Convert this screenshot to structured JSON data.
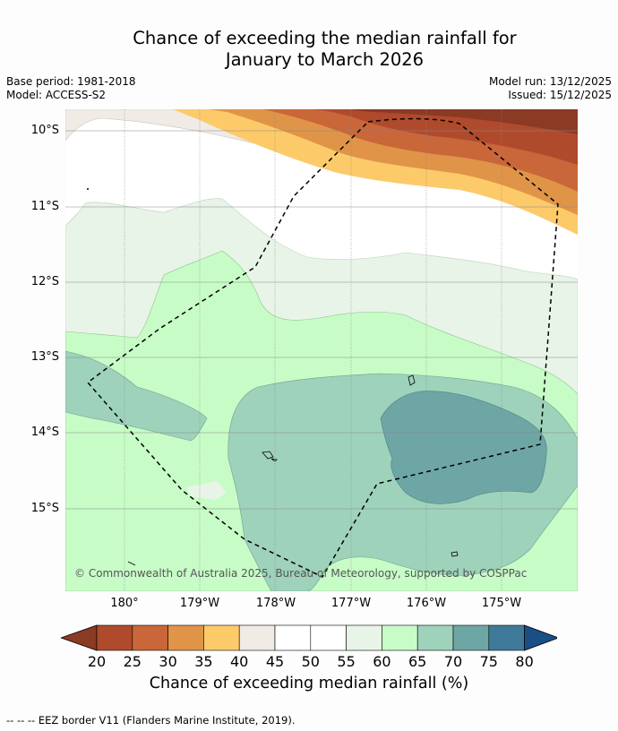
{
  "title": {
    "line1": "Chance of exceeding the median rainfall for",
    "line2": "January to March 2026"
  },
  "meta": {
    "base_period": "Base period: 1981-2018",
    "model": "Model: ACCESS-S2",
    "model_run": "Model run: 13/12/2025",
    "issued": "Issued: 15/12/2025"
  },
  "map": {
    "latitude_labels": [
      "10°S",
      "11°S",
      "12°S",
      "13°S",
      "14°S",
      "15°S"
    ],
    "longitude_labels": [
      "180°",
      "179°W",
      "178°W",
      "177°W",
      "176°W",
      "175°W"
    ],
    "copyright": "© Commonwealth of Australia 2025, Bureau of Meteorology, supported by COSPPac",
    "eez_boundary": "dashed black"
  },
  "colorbar": {
    "ticks": [
      "20",
      "25",
      "30",
      "35",
      "40",
      "45",
      "50",
      "55",
      "60",
      "65",
      "70",
      "75",
      "80"
    ],
    "colors": [
      "#8b3a24",
      "#b04a2c",
      "#c9663a",
      "#e09448",
      "#fdca6a",
      "#f0ebe5",
      "#ffffff",
      "#ffffff",
      "#e8f4e8",
      "#c7fcc7",
      "#9ed2bb",
      "#6ea6a6",
      "#3f7a9a",
      "#1a4f85"
    ],
    "label": "Chance of exceeding median rainfall (%)"
  },
  "footnote": "--  --  -- EEZ border V11 (Flanders Marine Institute, 2019)."
}
